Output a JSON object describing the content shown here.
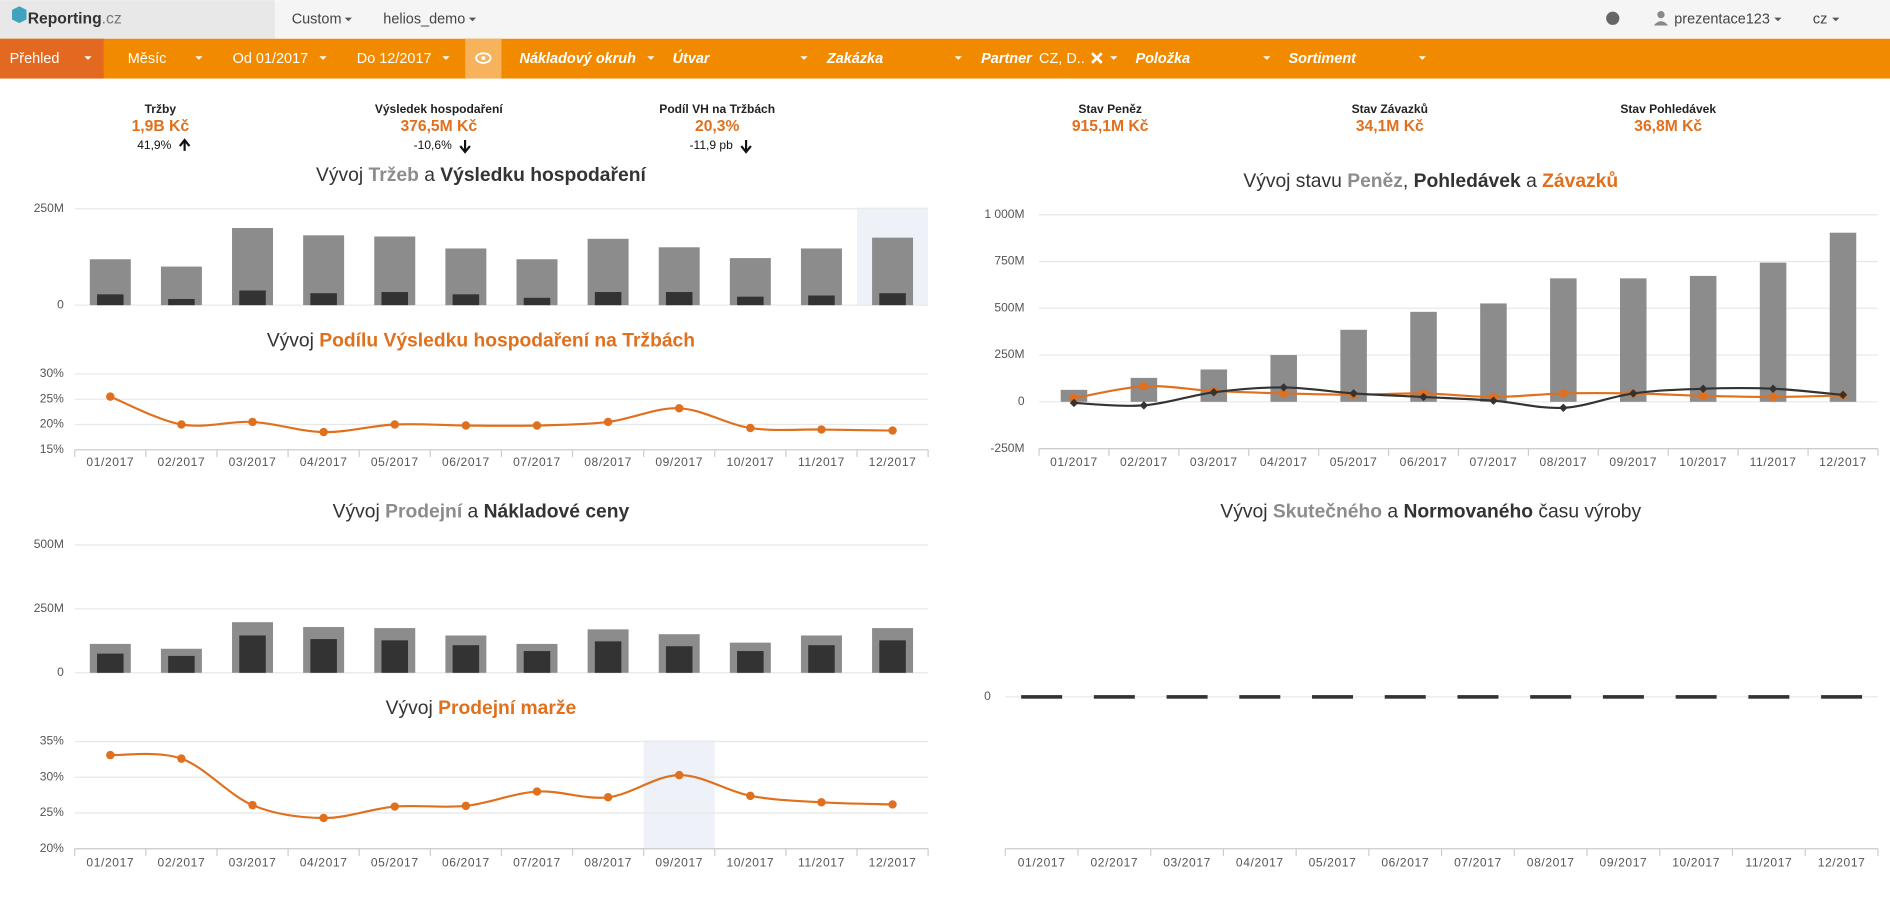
{
  "nav": {
    "logo": [
      "Reporting",
      ".cz"
    ],
    "menus": [
      "Custom",
      "helios_demo"
    ],
    "user": "prezentace123",
    "lang": "cz"
  },
  "filters": {
    "items": [
      "Přehled",
      "Měsíc",
      "Od 01/2017",
      "Do 12/2017",
      "Nákladový okruh",
      "Útvar",
      "Zakázka",
      "Partner",
      "Položka",
      "Sortiment"
    ],
    "partner_value": "CZ, D.."
  },
  "kpis": [
    {
      "label": "Tržby",
      "value": "1,9B Kč",
      "change": "41,9%",
      "trend": "up"
    },
    {
      "label": "Výsledek hospodaření",
      "value": "376,5M Kč",
      "change": "-10,6%",
      "trend": "down"
    },
    {
      "label": "Podíl VH na Tržbách",
      "value": "20,3%",
      "change": "-11,9 pb",
      "trend": "down"
    },
    {
      "label": "Stav Peněz",
      "value": "915,1M Kč"
    },
    {
      "label": "Stav Závazků",
      "value": "34,1M Kč"
    },
    {
      "label": "Stav Pohledávek",
      "value": "36,8M Kč"
    }
  ],
  "chart_data": [
    {
      "type": "bar",
      "title": [
        "Vývoj ",
        "Tržeb",
        " a ",
        "Výsledku hospodaření"
      ],
      "title_colors": [
        null,
        "#8c8c8c",
        null,
        "#333333"
      ],
      "series": [
        {
          "color": "#8c8c8c",
          "values": [
            119,
            100,
            200,
            181,
            178,
            147,
            119,
            172,
            150,
            122,
            147,
            175
          ]
        },
        {
          "color": "#333333",
          "values": [
            28,
            16,
            38,
            31,
            34,
            28,
            19,
            34,
            34,
            22,
            25,
            31
          ]
        }
      ],
      "ylim": [
        0,
        250
      ],
      "yticks": [
        0,
        {
          "value": 250,
          "label": "250M"
        }
      ],
      "grid": true
    },
    {
      "type": "line",
      "title": [
        "Vývoj ",
        "Podílu Výsledku hospodaření na Tržbách"
      ],
      "title_colors": [
        null,
        "#e0701e"
      ],
      "categories": [
        "01/2017",
        "02/2017",
        "03/2017",
        "04/2017",
        "05/2017",
        "06/2017",
        "07/2017",
        "08/2017",
        "09/2017",
        "10/2017",
        "11/2017",
        "12/2017"
      ],
      "series": [
        {
          "color": "#e0701e",
          "values": [
            25.5,
            20,
            20.5,
            18.5,
            20,
            19.8,
            19.8,
            20.5,
            23.2,
            19.3,
            19.0,
            18.8
          ]
        }
      ],
      "ylim": [
        15,
        30
      ],
      "yticks": [
        {
          "value": 15,
          "label": "15%"
        },
        {
          "value": 20,
          "label": "20%"
        },
        {
          "value": 25,
          "label": "25%"
        },
        {
          "value": 30,
          "label": "30%"
        }
      ],
      "grid": true
    },
    {
      "type": "bar",
      "title": [
        "Vývoj stavu ",
        "Peněz",
        ", ",
        "Pohledávek",
        " a ",
        "Závazků"
      ],
      "title_colors": [
        null,
        "#8c8c8c",
        null,
        "#333333",
        null,
        "#e0701e"
      ],
      "categories": [
        "01/2017",
        "02/2017",
        "03/2017",
        "04/2017",
        "05/2017",
        "06/2017",
        "07/2017",
        "08/2017",
        "09/2017",
        "10/2017",
        "11/2017",
        "12/2017"
      ],
      "series": [
        {
          "type": "bar",
          "color": "#8c8c8c",
          "values": [
            64,
            128,
            173,
            250,
            385,
            481,
            526,
            660,
            660,
            673,
            744,
            904
          ]
        },
        {
          "type": "line",
          "color": "#e0701e",
          "values": [
            19,
            83,
            58,
            45,
            38,
            45,
            26,
            45,
            45,
            32,
            26,
            34
          ]
        },
        {
          "type": "line",
          "color": "#333333",
          "values": [
            -6,
            -19,
            51,
            77,
            45,
            26,
            6,
            -32,
            45,
            70,
            70,
            37
          ]
        }
      ],
      "ylim": [
        -250,
        1000
      ],
      "yticks": [
        {
          "value": -250,
          "label": "-250M"
        },
        0,
        {
          "value": 250,
          "label": "250M"
        },
        {
          "value": 500,
          "label": "500M"
        },
        {
          "value": 750,
          "label": "750M"
        },
        {
          "value": 1000,
          "label": "1 000M"
        }
      ],
      "grid": true
    },
    {
      "type": "bar",
      "title": [
        "Vývoj ",
        "Prodejní",
        " a ",
        "Nákladové ceny"
      ],
      "title_colors": [
        null,
        "#8c8c8c",
        null,
        "#333333"
      ],
      "series": [
        {
          "color": "#8c8c8c",
          "values": [
            113,
            94,
            198,
            179,
            175,
            146,
            113,
            170,
            151,
            118,
            146,
            175
          ]
        },
        {
          "color": "#333333",
          "values": [
            75,
            66,
            146,
            132,
            127,
            108,
            85,
            123,
            104,
            85,
            108,
            127
          ]
        }
      ],
      "ylim": [
        0,
        500
      ],
      "yticks": [
        0,
        {
          "value": 250,
          "label": "250M"
        },
        {
          "value": 500,
          "label": "500M"
        }
      ],
      "grid": true
    },
    {
      "type": "line",
      "title": [
        "Vývoj ",
        "Prodejní marže"
      ],
      "title_colors": [
        null,
        "#e0701e"
      ],
      "categories": [
        "01/2017",
        "02/2017",
        "03/2017",
        "04/2017",
        "05/2017",
        "06/2017",
        "07/2017",
        "08/2017",
        "09/2017",
        "10/2017",
        "11/2017",
        "12/2017"
      ],
      "series": [
        {
          "color": "#e0701e",
          "values": [
            33.1,
            32.6,
            26.1,
            24.3,
            25.9,
            26,
            28,
            27.2,
            30.3,
            27.4,
            26.5,
            26.2
          ]
        }
      ],
      "ylim": [
        20,
        35
      ],
      "yticks": [
        {
          "value": 20,
          "label": "20%"
        },
        {
          "value": 25,
          "label": "25%"
        },
        {
          "value": 30,
          "label": "30%"
        },
        {
          "value": 35,
          "label": "35%"
        }
      ],
      "grid": true
    },
    {
      "type": "bar",
      "title": [
        "Vývoj ",
        "Skutečného",
        " a ",
        "Normovaného",
        " času výroby"
      ],
      "title_colors": [
        null,
        "#8c8c8c",
        null,
        "#333333",
        null
      ],
      "categories": [
        "01/2017",
        "02/2017",
        "03/2017",
        "04/2017",
        "05/2017",
        "06/2017",
        "07/2017",
        "08/2017",
        "09/2017",
        "10/2017",
        "11/2017",
        "12/2017"
      ],
      "series": [
        {
          "color": "#333333",
          "values": [
            0,
            0,
            0,
            0,
            0,
            0,
            0,
            0,
            0,
            0,
            0,
            0
          ]
        }
      ],
      "ylim": [
        -1,
        1
      ],
      "yticks": [
        0
      ],
      "grid": true
    }
  ]
}
